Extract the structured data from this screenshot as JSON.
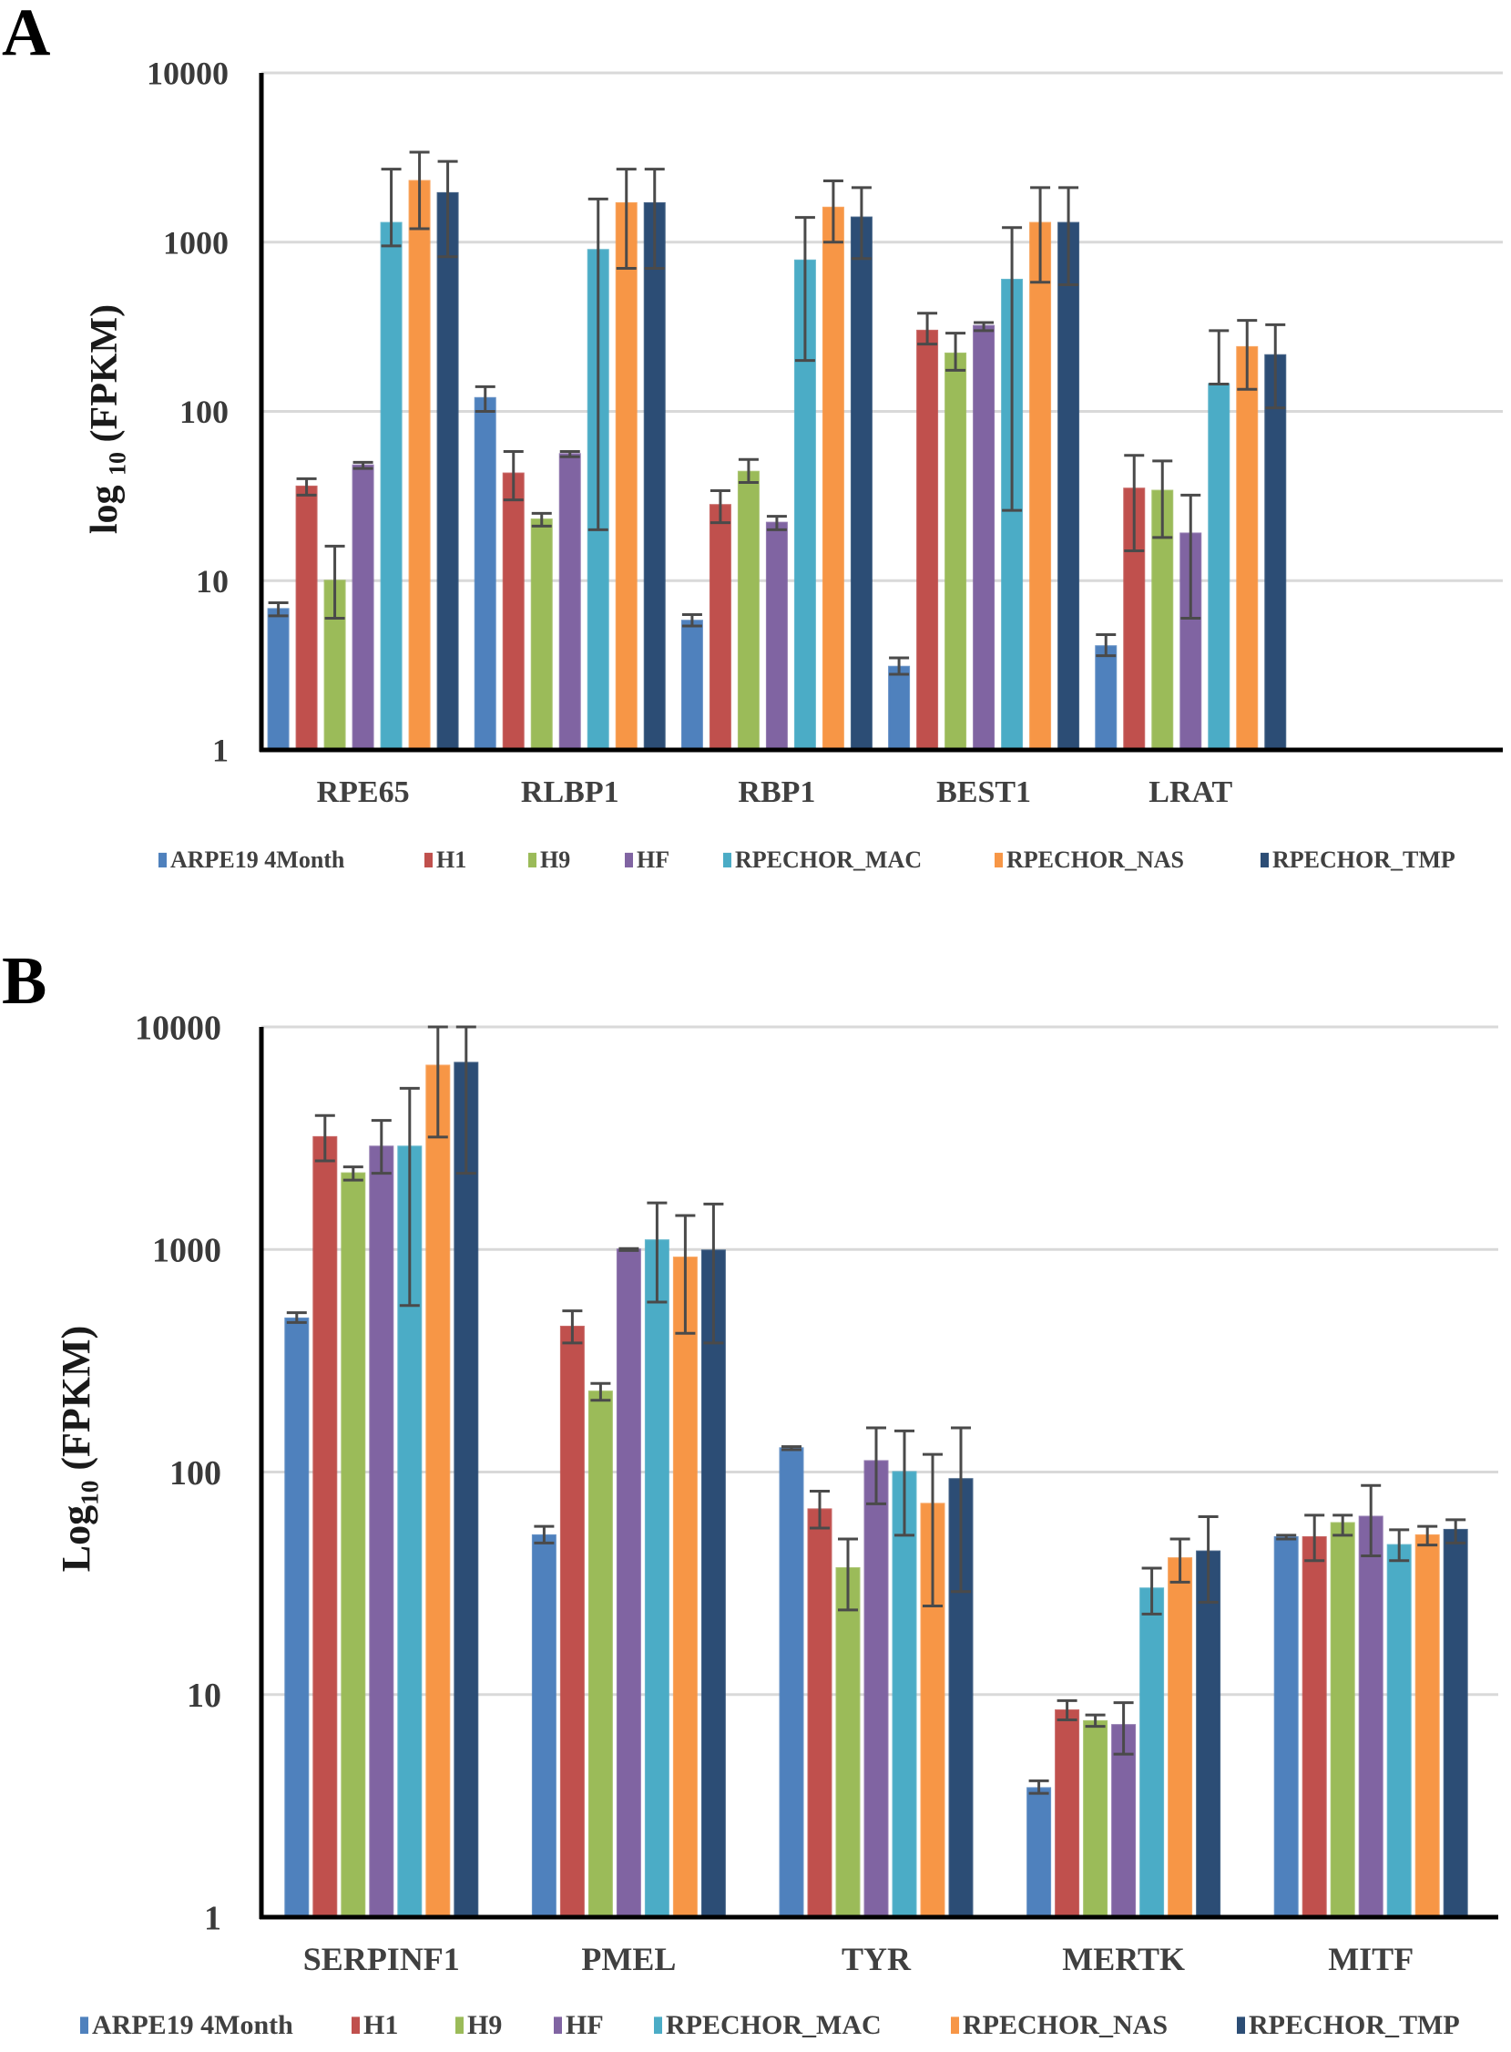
{
  "panels": [
    {
      "letter": "A"
    },
    {
      "letter": "B"
    }
  ],
  "chart_data": [
    {
      "type": "bar",
      "panel": "A",
      "title": "",
      "ylabel": "log 10 (FPKM)",
      "ylabel_main": "log",
      "ylabel_sub": "10",
      "ylabel_rest": "(FPKM)",
      "yscale": "log",
      "ylim": [
        1,
        10000
      ],
      "yticks": [
        "1",
        "10",
        "100",
        "1000",
        "10000"
      ],
      "grid": true,
      "legend": "bottom",
      "categories": [
        "RPE65",
        "RLBP1",
        "RBP1",
        "BEST1",
        "LRAT",
        ""
      ],
      "series": [
        {
          "name": "ARPE19 4Month",
          "color": "#4F81BD",
          "values": [
            6.8,
            120,
            5.8,
            3.1,
            4.1,
            null
          ],
          "err_low": [
            6.2,
            100,
            5.4,
            2.8,
            3.6,
            null
          ],
          "err_high": [
            7.4,
            140,
            6.3,
            3.5,
            4.8,
            null
          ]
        },
        {
          "name": "H1",
          "color": "#C0504D",
          "values": [
            36,
            43,
            28,
            300,
            35,
            null
          ],
          "err_low": [
            32,
            30,
            22,
            250,
            15,
            null
          ],
          "err_high": [
            40,
            58,
            34,
            380,
            55,
            null
          ]
        },
        {
          "name": "H9",
          "color": "#9BBB59",
          "values": [
            10,
            23,
            44,
            220,
            34,
            null
          ],
          "err_low": [
            6,
            21,
            38,
            175,
            18,
            null
          ],
          "err_high": [
            16,
            25,
            52,
            290,
            51,
            null
          ]
        },
        {
          "name": "HF",
          "color": "#8064A2",
          "values": [
            48,
            56,
            22,
            320,
            19,
            null
          ],
          "err_low": [
            46,
            54,
            20,
            300,
            6,
            null
          ],
          "err_high": [
            50,
            58,
            24,
            335,
            32,
            null
          ]
        },
        {
          "name": "RPECHOR_MAC",
          "color": "#4BACC6",
          "values": [
            1300,
            900,
            780,
            600,
            145,
            null
          ],
          "err_low": [
            950,
            20,
            200,
            26,
            145,
            null
          ],
          "err_high": [
            2700,
            1800,
            1400,
            1220,
            300,
            null
          ]
        },
        {
          "name": "RPECHOR_NAS",
          "color": "#F79646",
          "values": [
            2300,
            1700,
            1600,
            1300,
            240,
            null
          ],
          "err_low": [
            1200,
            700,
            1000,
            580,
            135,
            null
          ],
          "err_high": [
            3400,
            2700,
            2300,
            2100,
            345,
            null
          ]
        },
        {
          "name": "RPECHOR_TMP",
          "color": "#2C4D75",
          "values": [
            1950,
            1700,
            1400,
            1300,
            215,
            null
          ],
          "err_low": [
            820,
            700,
            800,
            560,
            105,
            null
          ],
          "err_high": [
            3000,
            2700,
            2100,
            2100,
            325,
            null
          ]
        }
      ]
    },
    {
      "type": "bar",
      "panel": "B",
      "title": "",
      "ylabel": "Log10 (FPKM)",
      "ylabel_main": "Log",
      "ylabel_sub": "10",
      "ylabel_rest": "(FPKM)",
      "yscale": "log",
      "ylim": [
        1,
        10000
      ],
      "yticks": [
        "1",
        "10",
        "100",
        "1000",
        "10000"
      ],
      "grid": true,
      "legend": "bottom",
      "categories": [
        "SERPINF1",
        "PMEL",
        "TYR",
        "MERTK",
        "MITF"
      ],
      "series": [
        {
          "name": "ARPE19 4Month",
          "color": "#4F81BD",
          "values": [
            490,
            52,
            128,
            3.8,
            51
          ],
          "err_low": [
            470,
            48,
            126,
            3.6,
            50
          ],
          "err_high": [
            520,
            57,
            130,
            4.1,
            52
          ]
        },
        {
          "name": "H1",
          "color": "#C0504D",
          "values": [
            3200,
            450,
            68,
            8.5,
            51
          ],
          "err_low": [
            2500,
            380,
            56,
            7.7,
            40
          ],
          "err_high": [
            4000,
            530,
            82,
            9.4,
            64
          ]
        },
        {
          "name": "H9",
          "color": "#9BBB59",
          "values": [
            2200,
            230,
            37,
            7.6,
            59
          ],
          "err_low": [
            2050,
            210,
            24,
            7.2,
            52
          ],
          "err_high": [
            2350,
            250,
            50,
            8.1,
            64
          ]
        },
        {
          "name": "HF",
          "color": "#8064A2",
          "values": [
            2900,
            1000,
            112,
            7.3,
            63
          ],
          "err_low": [
            2200,
            990,
            72,
            5.4,
            42
          ],
          "err_high": [
            3800,
            1010,
            158,
            9.2,
            87
          ]
        },
        {
          "name": "RPECHOR_MAC",
          "color": "#4BACC6",
          "values": [
            2900,
            1100,
            100,
            30,
            47
          ],
          "err_low": [
            560,
            580,
            52,
            23,
            40
          ],
          "err_high": [
            5300,
            1620,
            153,
            37,
            55
          ]
        },
        {
          "name": "RPECHOR_NAS",
          "color": "#F79646",
          "values": [
            6700,
            920,
            72,
            41,
            52
          ],
          "err_low": [
            3200,
            420,
            25,
            32,
            47
          ],
          "err_high": [
            10000,
            1420,
            120,
            50,
            57
          ]
        },
        {
          "name": "RPECHOR_TMP",
          "color": "#2C4D75",
          "values": [
            6900,
            990,
            93,
            44,
            55
          ],
          "err_low": [
            2200,
            380,
            29,
            26,
            48
          ],
          "err_high": [
            10000,
            1600,
            158,
            63,
            61
          ]
        }
      ]
    }
  ]
}
